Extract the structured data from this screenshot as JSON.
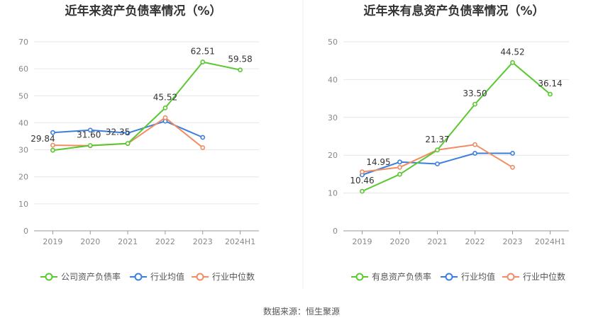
{
  "colors": {
    "company": "#5ac831",
    "avg": "#3a7fe0",
    "median": "#f28c63",
    "grid": "#e6e6e6",
    "axis": "#999999"
  },
  "source_text": "数据来源：恒生聚源",
  "chart_data": [
    {
      "type": "line",
      "title": "近年来资产负债率情况（%）",
      "categories": [
        "2019",
        "2020",
        "2021",
        "2022",
        "2023",
        "2024H1"
      ],
      "ylim": [
        0,
        70
      ],
      "yticks": [
        "0",
        "10",
        "20",
        "30",
        "40",
        "50",
        "60",
        "70"
      ],
      "legend_position": "bottom",
      "series": [
        {
          "name": "公司资产负债率",
          "color_key": "company",
          "values": [
            29.84,
            31.6,
            32.35,
            45.52,
            62.51,
            59.58
          ],
          "labels": [
            "29.84",
            "31.60",
            "32.35",
            "45.52",
            "62.51",
            "59.58"
          ]
        },
        {
          "name": "行业均值",
          "color_key": "avg",
          "values": [
            36.4,
            37.3,
            36.2,
            40.6,
            34.6,
            null
          ]
        },
        {
          "name": "行业中位数",
          "color_key": "median",
          "values": [
            31.7,
            31.5,
            32.3,
            41.9,
            30.8,
            null
          ]
        }
      ]
    },
    {
      "type": "line",
      "title": "近年来有息资产负债率情况（%）",
      "categories": [
        "2019",
        "2020",
        "2021",
        "2022",
        "2023",
        "2024H1"
      ],
      "ylim": [
        0,
        50
      ],
      "yticks": [
        "0",
        "10",
        "20",
        "30",
        "40",
        "50"
      ],
      "legend_position": "bottom",
      "series": [
        {
          "name": "有息资产负债率",
          "color_key": "company",
          "values": [
            10.46,
            14.95,
            21.37,
            33.5,
            44.52,
            36.14
          ],
          "labels": [
            "10.46",
            "14.95",
            "21.37",
            "33.50",
            "44.52",
            "36.14"
          ]
        },
        {
          "name": "行业均值",
          "color_key": "avg",
          "values": [
            14.8,
            18.2,
            17.7,
            20.5,
            20.5,
            null
          ]
        },
        {
          "name": "行业中位数",
          "color_key": "median",
          "values": [
            15.6,
            16.8,
            21.4,
            22.8,
            16.8,
            null
          ]
        }
      ]
    }
  ]
}
